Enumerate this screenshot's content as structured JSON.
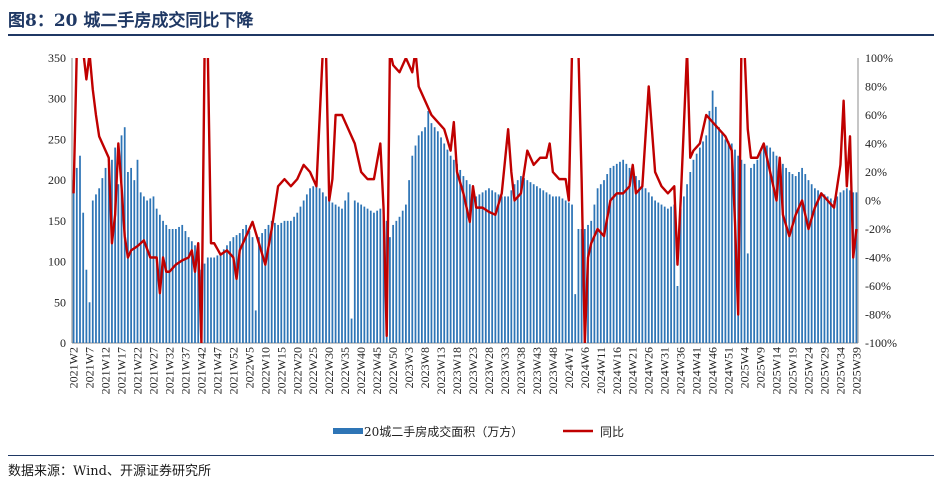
{
  "title": "图8：20 城二手房成交同比下降",
  "source": "数据来源：Wind、开源证券研究所",
  "colors": {
    "bar": "#2e75b6",
    "line": "#c00000",
    "title": "#1f3864"
  },
  "chart_data": {
    "type": "bar+line",
    "title": "图8：20 城二手房成交同比下降",
    "y_left": {
      "min": 0,
      "max": 350,
      "ticks": [
        0,
        50,
        100,
        150,
        200,
        250,
        300,
        350
      ],
      "labels": [
        "0",
        "50",
        "100",
        "150",
        "200",
        "250",
        "300",
        "350"
      ]
    },
    "y_right": {
      "min": -100,
      "max": 100,
      "ticks": [
        -100,
        -80,
        -60,
        -40,
        -20,
        0,
        20,
        40,
        60,
        80,
        100
      ],
      "labels": [
        "-100%",
        "-80%",
        "-60%",
        "-40%",
        "-20%",
        "0%",
        "20%",
        "40%",
        "60%",
        "80%",
        "100%"
      ]
    },
    "x_tick_labels": [
      "2021W2",
      "2021W7",
      "2021W12",
      "2021W17",
      "2021W22",
      "2021W27",
      "2021W32",
      "2021W37",
      "2021W42",
      "2021W47",
      "2021W52",
      "2022W5",
      "2022W10",
      "2022W15",
      "2022W20",
      "2022W25",
      "2022W30",
      "2022W35",
      "2022W40",
      "2022W45",
      "2022W50",
      "2023W3",
      "2023W8",
      "2023W13",
      "2023W18",
      "2023W23",
      "2023W28",
      "2023W33",
      "2023W38",
      "2023W43",
      "2023W48",
      "2024W1",
      "2024W6",
      "2024W11",
      "2024W16",
      "2024W21",
      "2024W26",
      "2024W31",
      "2024W36",
      "2024W41",
      "2024W46",
      "2024W51",
      "2025W4",
      "2025W9",
      "2025W14",
      "2025W19",
      "2025W24",
      "2025W29",
      "2025W34",
      "2025W39"
    ],
    "bar_anchors": [
      [
        0,
        200
      ],
      [
        2,
        230
      ],
      [
        4,
        90
      ],
      [
        5,
        50
      ],
      [
        6,
        175
      ],
      [
        8,
        190
      ],
      [
        10,
        215
      ],
      [
        12,
        225
      ],
      [
        13,
        240
      ],
      [
        14,
        195
      ],
      [
        15,
        255
      ],
      [
        16,
        265
      ],
      [
        17,
        210
      ],
      [
        18,
        215
      ],
      [
        19,
        200
      ],
      [
        20,
        225
      ],
      [
        21,
        185
      ],
      [
        23,
        175
      ],
      [
        25,
        180
      ],
      [
        26,
        165
      ],
      [
        28,
        150
      ],
      [
        30,
        140
      ],
      [
        32,
        140
      ],
      [
        34,
        145
      ],
      [
        36,
        130
      ],
      [
        38,
        120
      ],
      [
        40,
        90
      ],
      [
        42,
        105
      ],
      [
        44,
        105
      ],
      [
        46,
        110
      ],
      [
        48,
        120
      ],
      [
        50,
        130
      ],
      [
        52,
        135
      ],
      [
        54,
        145
      ],
      [
        56,
        130
      ],
      [
        57,
        40
      ],
      [
        58,
        130
      ],
      [
        60,
        140
      ],
      [
        62,
        150
      ],
      [
        64,
        145
      ],
      [
        66,
        150
      ],
      [
        68,
        150
      ],
      [
        70,
        160
      ],
      [
        72,
        175
      ],
      [
        74,
        190
      ],
      [
        76,
        195
      ],
      [
        78,
        185
      ],
      [
        80,
        175
      ],
      [
        82,
        170
      ],
      [
        84,
        165
      ],
      [
        86,
        185
      ],
      [
        87,
        30
      ],
      [
        88,
        175
      ],
      [
        90,
        170
      ],
      [
        92,
        165
      ],
      [
        94,
        160
      ],
      [
        96,
        165
      ],
      [
        98,
        150
      ],
      [
        99,
        130
      ],
      [
        100,
        145
      ],
      [
        102,
        155
      ],
      [
        104,
        170
      ],
      [
        106,
        230
      ],
      [
        108,
        255
      ],
      [
        110,
        265
      ],
      [
        111,
        285
      ],
      [
        112,
        270
      ],
      [
        114,
        260
      ],
      [
        116,
        245
      ],
      [
        118,
        230
      ],
      [
        120,
        220
      ],
      [
        122,
        205
      ],
      [
        124,
        195
      ],
      [
        126,
        180
      ],
      [
        128,
        185
      ],
      [
        130,
        190
      ],
      [
        132,
        185
      ],
      [
        134,
        180
      ],
      [
        136,
        180
      ],
      [
        138,
        195
      ],
      [
        140,
        205
      ],
      [
        142,
        200
      ],
      [
        144,
        195
      ],
      [
        146,
        190
      ],
      [
        148,
        185
      ],
      [
        150,
        180
      ],
      [
        152,
        180
      ],
      [
        154,
        175
      ],
      [
        156,
        170
      ],
      [
        157,
        60
      ],
      [
        158,
        140
      ],
      [
        160,
        140
      ],
      [
        162,
        150
      ],
      [
        164,
        190
      ],
      [
        166,
        200
      ],
      [
        168,
        215
      ],
      [
        170,
        220
      ],
      [
        172,
        225
      ],
      [
        174,
        215
      ],
      [
        176,
        205
      ],
      [
        178,
        195
      ],
      [
        180,
        185
      ],
      [
        182,
        175
      ],
      [
        184,
        170
      ],
      [
        186,
        165
      ],
      [
        188,
        170
      ],
      [
        189,
        70
      ],
      [
        190,
        165
      ],
      [
        192,
        195
      ],
      [
        194,
        225
      ],
      [
        196,
        240
      ],
      [
        198,
        255
      ],
      [
        199,
        285
      ],
      [
        200,
        310
      ],
      [
        201,
        290
      ],
      [
        202,
        265
      ],
      [
        204,
        250
      ],
      [
        206,
        245
      ],
      [
        208,
        230
      ],
      [
        210,
        220
      ],
      [
        211,
        110
      ],
      [
        212,
        215
      ],
      [
        214,
        225
      ],
      [
        216,
        245
      ],
      [
        218,
        240
      ],
      [
        220,
        230
      ],
      [
        222,
        220
      ],
      [
        224,
        210
      ],
      [
        226,
        205
      ],
      [
        228,
        215
      ],
      [
        230,
        200
      ],
      [
        232,
        190
      ],
      [
        234,
        185
      ],
      [
        236,
        180
      ],
      [
        238,
        175
      ],
      [
        240,
        185
      ],
      [
        242,
        190
      ],
      [
        244,
        185
      ]
    ],
    "line_anchors": [
      [
        0,
        5
      ],
      [
        1,
        105
      ],
      [
        3,
        105
      ],
      [
        4,
        85
      ],
      [
        5,
        103
      ],
      [
        6,
        78
      ],
      [
        7,
        60
      ],
      [
        8,
        45
      ],
      [
        9,
        40
      ],
      [
        10,
        35
      ],
      [
        11,
        30
      ],
      [
        12,
        -30
      ],
      [
        13,
        -10
      ],
      [
        14,
        40
      ],
      [
        15,
        10
      ],
      [
        16,
        -25
      ],
      [
        17,
        -40
      ],
      [
        18,
        -35
      ],
      [
        20,
        -32
      ],
      [
        22,
        -28
      ],
      [
        24,
        -40
      ],
      [
        26,
        -40
      ],
      [
        27,
        -65
      ],
      [
        28,
        -40
      ],
      [
        29,
        -50
      ],
      [
        30,
        -50
      ],
      [
        32,
        -45
      ],
      [
        34,
        -42
      ],
      [
        36,
        -40
      ],
      [
        37,
        -35
      ],
      [
        38,
        -50
      ],
      [
        39,
        -30
      ],
      [
        40,
        -100
      ],
      [
        41,
        105
      ],
      [
        42,
        105
      ],
      [
        43,
        -30
      ],
      [
        44,
        -30
      ],
      [
        46,
        -38
      ],
      [
        48,
        -35
      ],
      [
        50,
        -40
      ],
      [
        51,
        -55
      ],
      [
        52,
        -35
      ],
      [
        54,
        -25
      ],
      [
        56,
        -15
      ],
      [
        58,
        -30
      ],
      [
        60,
        -45
      ],
      [
        62,
        -20
      ],
      [
        64,
        10
      ],
      [
        66,
        15
      ],
      [
        68,
        10
      ],
      [
        70,
        15
      ],
      [
        72,
        25
      ],
      [
        74,
        20
      ],
      [
        76,
        10
      ],
      [
        78,
        105
      ],
      [
        79,
        105
      ],
      [
        80,
        0
      ],
      [
        81,
        15
      ],
      [
        82,
        60
      ],
      [
        84,
        60
      ],
      [
        86,
        50
      ],
      [
        88,
        40
      ],
      [
        90,
        20
      ],
      [
        92,
        15
      ],
      [
        94,
        15
      ],
      [
        96,
        40
      ],
      [
        97,
        -5
      ],
      [
        98,
        -95
      ],
      [
        99,
        105
      ],
      [
        100,
        95
      ],
      [
        102,
        90
      ],
      [
        104,
        100
      ],
      [
        106,
        90
      ],
      [
        107,
        105
      ],
      [
        108,
        80
      ],
      [
        110,
        70
      ],
      [
        112,
        60
      ],
      [
        114,
        55
      ],
      [
        116,
        50
      ],
      [
        118,
        35
      ],
      [
        119,
        55
      ],
      [
        120,
        20
      ],
      [
        122,
        5
      ],
      [
        124,
        -15
      ],
      [
        125,
        10
      ],
      [
        126,
        -5
      ],
      [
        128,
        -5
      ],
      [
        130,
        -8
      ],
      [
        132,
        -10
      ],
      [
        134,
        5
      ],
      [
        136,
        50
      ],
      [
        137,
        20
      ],
      [
        138,
        0
      ],
      [
        140,
        5
      ],
      [
        142,
        35
      ],
      [
        144,
        25
      ],
      [
        146,
        30
      ],
      [
        148,
        30
      ],
      [
        149,
        40
      ],
      [
        150,
        20
      ],
      [
        152,
        15
      ],
      [
        154,
        15
      ],
      [
        155,
        0
      ],
      [
        156,
        105
      ],
      [
        158,
        105
      ],
      [
        159,
        15
      ],
      [
        160,
        -100
      ],
      [
        161,
        -40
      ],
      [
        162,
        -30
      ],
      [
        164,
        -20
      ],
      [
        166,
        -25
      ],
      [
        168,
        0
      ],
      [
        170,
        5
      ],
      [
        172,
        5
      ],
      [
        174,
        10
      ],
      [
        175,
        25
      ],
      [
        176,
        5
      ],
      [
        178,
        10
      ],
      [
        180,
        80
      ],
      [
        182,
        20
      ],
      [
        184,
        10
      ],
      [
        186,
        5
      ],
      [
        188,
        10
      ],
      [
        189,
        -45
      ],
      [
        190,
        0
      ],
      [
        192,
        105
      ],
      [
        193,
        30
      ],
      [
        194,
        35
      ],
      [
        196,
        40
      ],
      [
        198,
        60
      ],
      [
        200,
        55
      ],
      [
        202,
        50
      ],
      [
        204,
        45
      ],
      [
        206,
        35
      ],
      [
        207,
        -15
      ],
      [
        208,
        -80
      ],
      [
        209,
        105
      ],
      [
        210,
        105
      ],
      [
        211,
        50
      ],
      [
        212,
        30
      ],
      [
        214,
        30
      ],
      [
        216,
        40
      ],
      [
        218,
        20
      ],
      [
        220,
        0
      ],
      [
        221,
        30
      ],
      [
        222,
        -10
      ],
      [
        224,
        -25
      ],
      [
        226,
        -10
      ],
      [
        228,
        0
      ],
      [
        230,
        -20
      ],
      [
        232,
        -5
      ],
      [
        234,
        5
      ],
      [
        236,
        0
      ],
      [
        238,
        -5
      ],
      [
        240,
        25
      ],
      [
        241,
        70
      ],
      [
        242,
        10
      ],
      [
        243,
        45
      ],
      [
        244,
        -40
      ],
      [
        245,
        -20
      ]
    ],
    "series": [
      {
        "name": "20城二手房成交面积（万方）",
        "type": "bar",
        "axis": "left"
      },
      {
        "name": "同比",
        "type": "line",
        "axis": "right"
      }
    ],
    "legend_position": "bottom-center"
  }
}
